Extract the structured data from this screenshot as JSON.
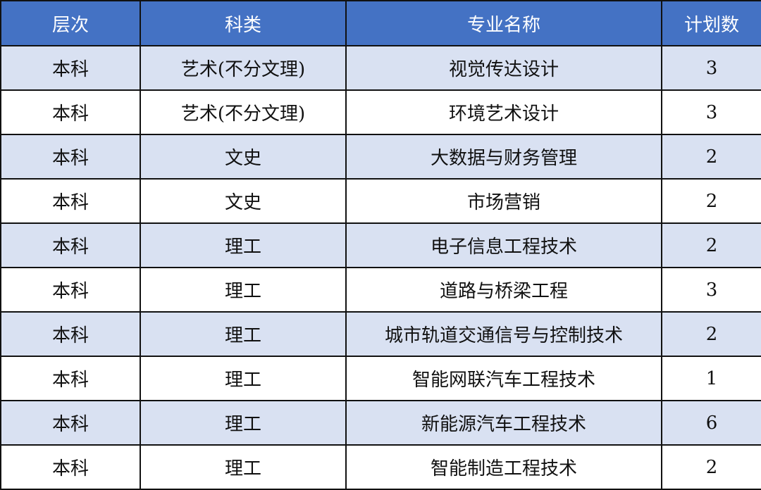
{
  "colors": {
    "header_bg": "#4472C4",
    "header_text": "#FFFFFF",
    "stripe": "#D9E1F2"
  },
  "headers": [
    "层次",
    "科类",
    "专业名称",
    "计划数"
  ],
  "rows": [
    [
      "本科",
      "艺术(不分文理)",
      "视觉传达设计",
      "3"
    ],
    [
      "本科",
      "艺术(不分文理)",
      "环境艺术设计",
      "3"
    ],
    [
      "本科",
      "文史",
      "大数据与财务管理",
      "2"
    ],
    [
      "本科",
      "文史",
      "市场营销",
      "2"
    ],
    [
      "本科",
      "理工",
      "电子信息工程技术",
      "2"
    ],
    [
      "本科",
      "理工",
      "道路与桥梁工程",
      "3"
    ],
    [
      "本科",
      "理工",
      "城市轨道交通信号与控制技术",
      "2"
    ],
    [
      "本科",
      "理工",
      "智能网联汽车工程技术",
      "1"
    ],
    [
      "本科",
      "理工",
      "新能源汽车工程技术",
      "6"
    ],
    [
      "本科",
      "理工",
      "智能制造工程技术",
      "2"
    ]
  ]
}
